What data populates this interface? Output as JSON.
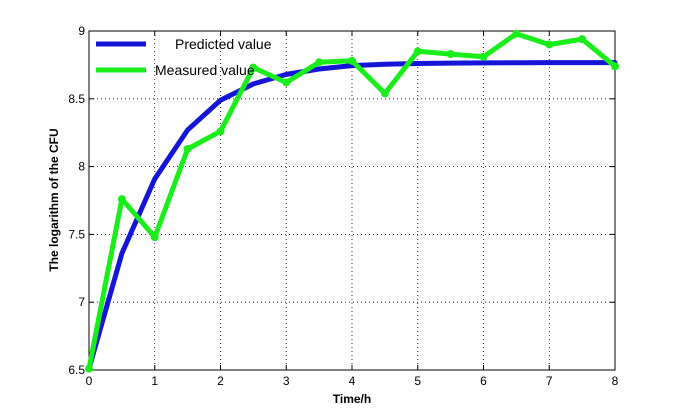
{
  "chart_data": {
    "type": "line",
    "xlabel": "Time/h",
    "ylabel": "The logarithm of the CFU",
    "xlim": [
      0,
      8
    ],
    "ylim": [
      6.5,
      9
    ],
    "xticks": [
      "0",
      "1",
      "2",
      "3",
      "4",
      "5",
      "6",
      "7",
      "8"
    ],
    "yticks": [
      "6.5",
      "7",
      "7.5",
      "8",
      "8.5",
      "9"
    ],
    "grid": true,
    "legend_position": "top-left",
    "series": [
      {
        "name": "Predicted value",
        "color": "#1515d8",
        "markers": false,
        "x": [
          0,
          0.5,
          1,
          1.5,
          2,
          2.5,
          3,
          3.5,
          4,
          4.5,
          5,
          5.5,
          6,
          6.5,
          7,
          7.5,
          8
        ],
        "values": [
          6.51,
          7.36,
          7.91,
          8.27,
          8.49,
          8.61,
          8.68,
          8.72,
          8.745,
          8.755,
          8.76,
          8.763,
          8.765,
          8.766,
          8.767,
          8.767,
          8.767
        ]
      },
      {
        "name": "Measured value",
        "color": "#1aee1a",
        "markers": true,
        "x": [
          0,
          0.5,
          1,
          1.5,
          2,
          2.5,
          3,
          3.5,
          4,
          4.5,
          5,
          5.5,
          6,
          6.5,
          7,
          7.5,
          8
        ],
        "values": [
          6.51,
          7.76,
          7.48,
          8.13,
          8.26,
          8.73,
          8.62,
          8.77,
          8.78,
          8.54,
          8.85,
          8.83,
          8.81,
          8.98,
          8.9,
          8.94,
          8.74
        ]
      }
    ]
  }
}
